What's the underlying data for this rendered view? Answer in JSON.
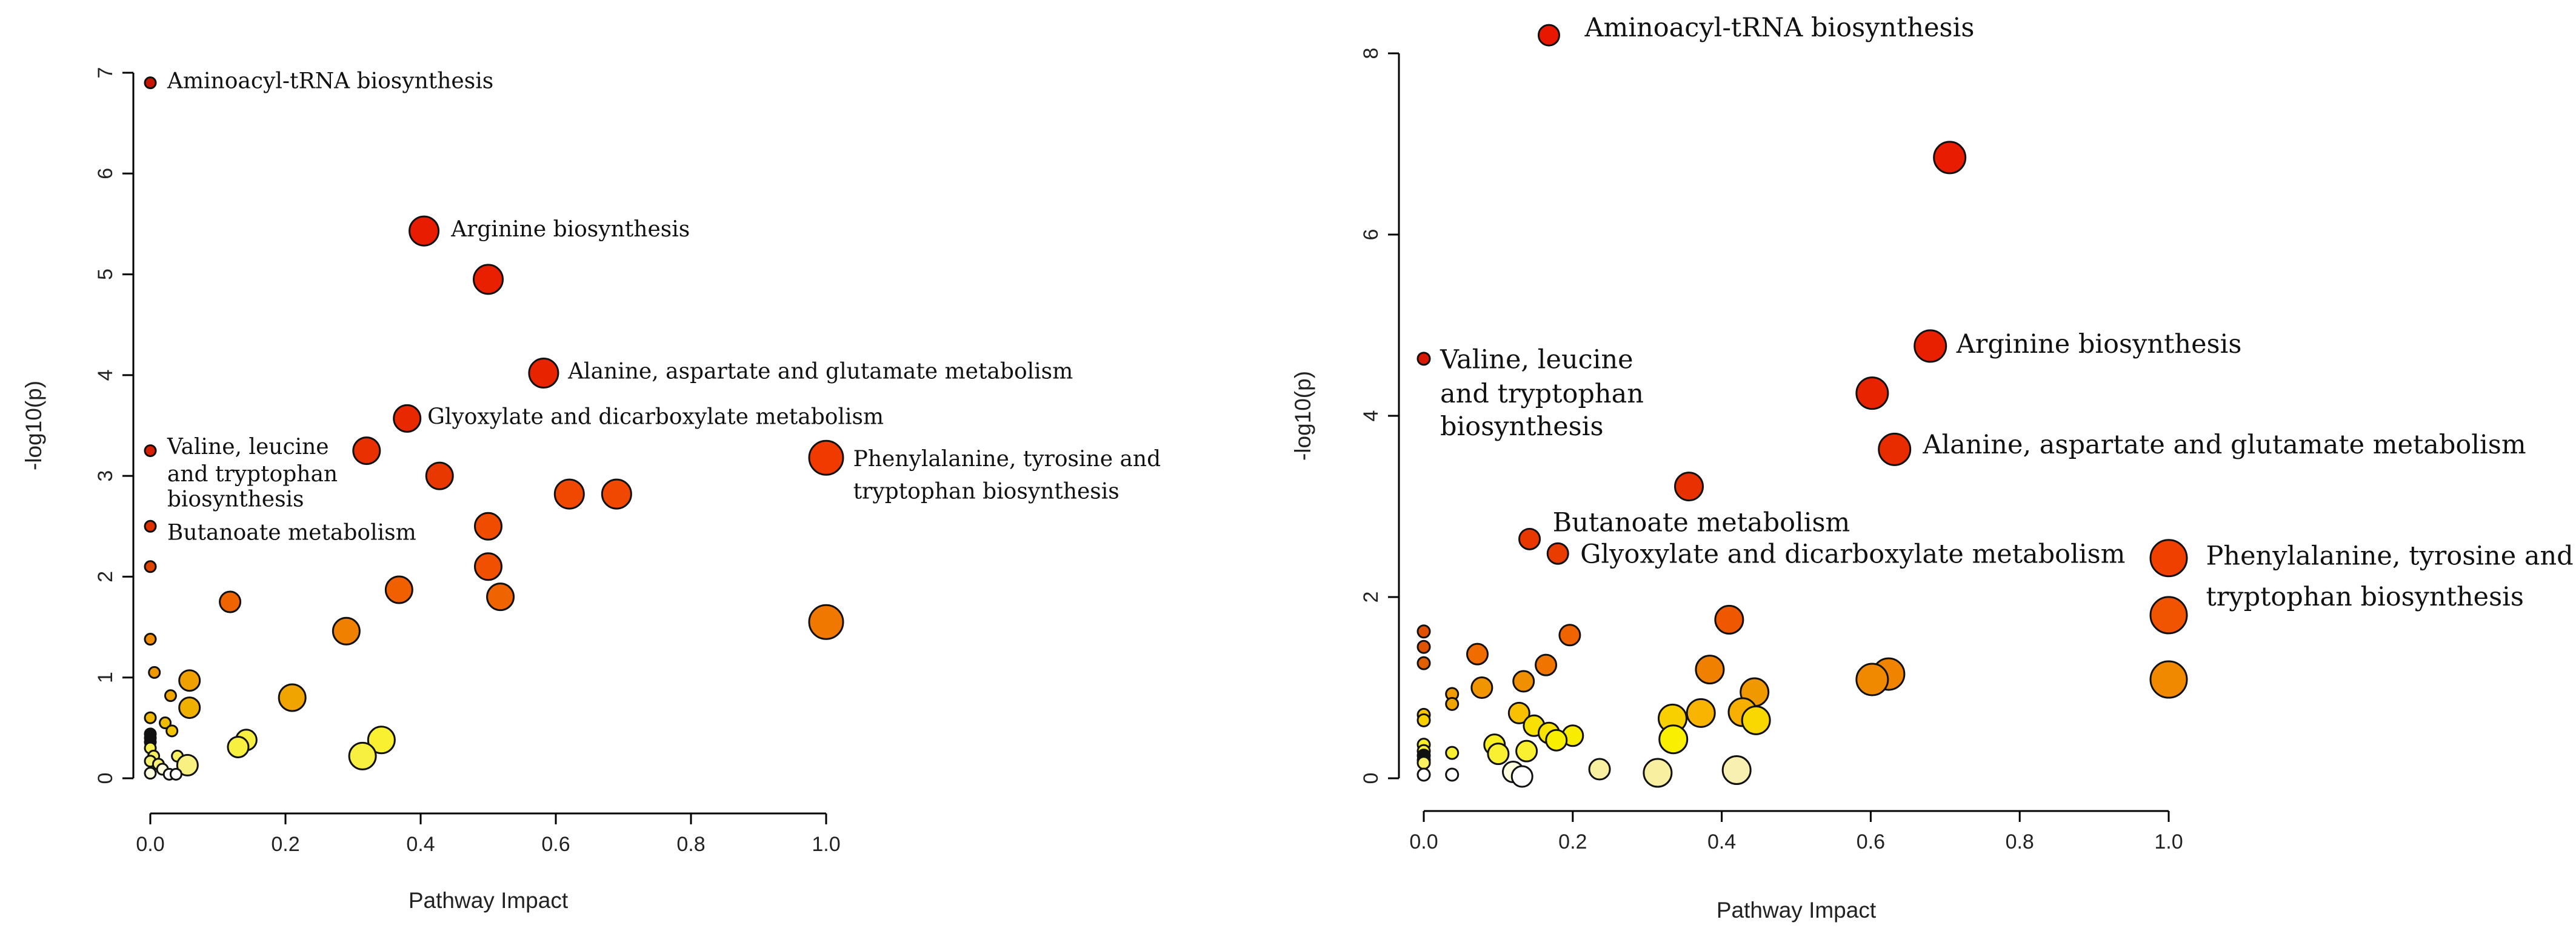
{
  "chart_data": [
    {
      "type": "scatter",
      "title": "",
      "xlabel": "Pathway Impact",
      "ylabel": "-log10(p)",
      "xlim": [
        0.0,
        1.0
      ],
      "ylim": [
        0,
        7
      ],
      "xticks": [
        "0.0",
        "0.2",
        "0.4",
        "0.6",
        "0.8",
        "1.0"
      ],
      "yticks": [
        "0",
        "1",
        "2",
        "3",
        "4",
        "5",
        "6",
        "7"
      ],
      "grid": false,
      "points": [
        {
          "x": 0.0,
          "y": 6.9,
          "size": 1,
          "color": "#c81400"
        },
        {
          "x": 0.405,
          "y": 5.43,
          "size": 4,
          "color": "#e81c00"
        },
        {
          "x": 0.5,
          "y": 4.95,
          "size": 4,
          "color": "#e82000"
        },
        {
          "x": 0.582,
          "y": 4.02,
          "size": 4,
          "color": "#e82400"
        },
        {
          "x": 0.38,
          "y": 3.57,
          "size": 3,
          "color": "#e82800"
        },
        {
          "x": 0.0,
          "y": 3.25,
          "size": 1,
          "color": "#d82000"
        },
        {
          "x": 0.32,
          "y": 3.25,
          "size": 3,
          "color": "#e83000"
        },
        {
          "x": 0.428,
          "y": 3.0,
          "size": 3,
          "color": "#e83800"
        },
        {
          "x": 1.0,
          "y": 3.18,
          "size": 5,
          "color": "#f03a00"
        },
        {
          "x": 0.62,
          "y": 2.82,
          "size": 4,
          "color": "#f04800"
        },
        {
          "x": 0.69,
          "y": 2.82,
          "size": 4,
          "color": "#f04800"
        },
        {
          "x": 0.0,
          "y": 2.5,
          "size": 1,
          "color": "#e03000"
        },
        {
          "x": 0.5,
          "y": 2.5,
          "size": 3,
          "color": "#f04c00"
        },
        {
          "x": 0.0,
          "y": 2.1,
          "size": 1,
          "color": "#e04400"
        },
        {
          "x": 0.5,
          "y": 2.1,
          "size": 3,
          "color": "#f05000"
        },
        {
          "x": 0.368,
          "y": 1.87,
          "size": 3,
          "color": "#f06000"
        },
        {
          "x": 0.518,
          "y": 1.8,
          "size": 3,
          "color": "#f06400"
        },
        {
          "x": 0.118,
          "y": 1.75,
          "size": 2,
          "color": "#f06400"
        },
        {
          "x": 1.0,
          "y": 1.55,
          "size": 5,
          "color": "#f07800"
        },
        {
          "x": 0.29,
          "y": 1.46,
          "size": 3,
          "color": "#f08000"
        },
        {
          "x": 0.0,
          "y": 1.38,
          "size": 1,
          "color": "#f08c00"
        },
        {
          "x": 0.006,
          "y": 1.05,
          "size": 1,
          "color": "#f09800"
        },
        {
          "x": 0.058,
          "y": 0.97,
          "size": 2,
          "color": "#f0a000"
        },
        {
          "x": 0.03,
          "y": 0.82,
          "size": 1,
          "color": "#f0a400"
        },
        {
          "x": 0.21,
          "y": 0.8,
          "size": 3,
          "color": "#f0a400"
        },
        {
          "x": 0.058,
          "y": 0.7,
          "size": 2,
          "color": "#f0b000"
        },
        {
          "x": 0.0,
          "y": 0.6,
          "size": 1,
          "color": "#f0b800"
        },
        {
          "x": 0.022,
          "y": 0.55,
          "size": 1,
          "color": "#f0bc00"
        },
        {
          "x": 0.032,
          "y": 0.47,
          "size": 1,
          "color": "#f0c400"
        },
        {
          "x": 0.0,
          "y": 0.44,
          "size": 1,
          "color": "#101010"
        },
        {
          "x": 0.0,
          "y": 0.4,
          "size": 1,
          "color": "#101010"
        },
        {
          "x": 0.0,
          "y": 0.36,
          "size": 1,
          "color": "#101010"
        },
        {
          "x": 0.142,
          "y": 0.38,
          "size": 2,
          "color": "#f8f040"
        },
        {
          "x": 0.342,
          "y": 0.38,
          "size": 3,
          "color": "#f8f030"
        },
        {
          "x": 0.13,
          "y": 0.31,
          "size": 2,
          "color": "#f8f040"
        },
        {
          "x": 0.0,
          "y": 0.3,
          "size": 1,
          "color": "#f8f050"
        },
        {
          "x": 0.005,
          "y": 0.22,
          "size": 1,
          "color": "#f8f060"
        },
        {
          "x": 0.04,
          "y": 0.22,
          "size": 1,
          "color": "#f8f060"
        },
        {
          "x": 0.314,
          "y": 0.22,
          "size": 3,
          "color": "#f8f040"
        },
        {
          "x": 0.0,
          "y": 0.17,
          "size": 1,
          "color": "#f8f070"
        },
        {
          "x": 0.012,
          "y": 0.14,
          "size": 1,
          "color": "#f8f070"
        },
        {
          "x": 0.055,
          "y": 0.13,
          "size": 2,
          "color": "#f8f080"
        },
        {
          "x": 0.018,
          "y": 0.09,
          "size": 1,
          "color": "#ffffe0"
        },
        {
          "x": 0.0,
          "y": 0.05,
          "size": 1,
          "color": "#ffffe0"
        },
        {
          "x": 0.028,
          "y": 0.04,
          "size": 1,
          "color": "#ffffff"
        },
        {
          "x": 0.038,
          "y": 0.04,
          "size": 1,
          "color": "#ffffff"
        }
      ],
      "annotations": [
        {
          "text": "Aminoacyl-tRNA biosynthesis",
          "x": 0.025,
          "y": 6.9
        },
        {
          "text": "Arginine biosynthesis",
          "x": 0.445,
          "y": 5.43
        },
        {
          "text": "Alanine, aspartate and glutamate metabolism",
          "x": 0.618,
          "y": 4.02
        },
        {
          "text": "Glyoxylate and dicarboxylate metabolism",
          "x": 0.41,
          "y": 3.57
        },
        {
          "text": "Valine, leucine",
          "x": 0.025,
          "y": 3.27
        },
        {
          "text": "and tryptophan",
          "x": 0.025,
          "y": 3.0
        },
        {
          "text": "biosynthesis",
          "x": 0.025,
          "y": 2.75
        },
        {
          "text": "Butanoate metabolism",
          "x": 0.025,
          "y": 2.42
        },
        {
          "text": "Phenylalanine, tyrosine and",
          "x": 1.04,
          "y": 3.15
        },
        {
          "text": "tryptophan biosynthesis",
          "x": 1.04,
          "y": 2.83
        }
      ]
    },
    {
      "type": "scatter",
      "title": "",
      "xlabel": "Pathway Impact",
      "ylabel": "-log10(p)",
      "xlim": [
        0.0,
        1.0
      ],
      "ylim": [
        0,
        8
      ],
      "xticks": [
        "0.0",
        "0.2",
        "0.4",
        "0.6",
        "0.8",
        "1.0"
      ],
      "yticks": [
        "0",
        "2",
        "4",
        "6",
        "8"
      ],
      "grid": false,
      "points": [
        {
          "x": 0.168,
          "y": 8.2,
          "size": 2,
          "color": "#e81800"
        },
        {
          "x": 0.706,
          "y": 6.85,
          "size": 4,
          "color": "#e81c00"
        },
        {
          "x": 0.68,
          "y": 4.77,
          "size": 4,
          "color": "#e82000"
        },
        {
          "x": 0.0,
          "y": 4.63,
          "size": 1,
          "color": "#d81800"
        },
        {
          "x": 0.602,
          "y": 4.25,
          "size": 4,
          "color": "#e82400"
        },
        {
          "x": 0.632,
          "y": 3.63,
          "size": 4,
          "color": "#e82c00"
        },
        {
          "x": 0.356,
          "y": 3.22,
          "size": 3,
          "color": "#e83000"
        },
        {
          "x": 0.142,
          "y": 2.64,
          "size": 2,
          "color": "#e83800"
        },
        {
          "x": 0.18,
          "y": 2.48,
          "size": 2,
          "color": "#e83c00"
        },
        {
          "x": 1.0,
          "y": 2.43,
          "size": 5,
          "color": "#f04000"
        },
        {
          "x": 1.0,
          "y": 1.8,
          "size": 5,
          "color": "#f05400"
        },
        {
          "x": 0.41,
          "y": 1.75,
          "size": 3,
          "color": "#f05800"
        },
        {
          "x": 0.0,
          "y": 1.62,
          "size": 1,
          "color": "#e05000"
        },
        {
          "x": 0.196,
          "y": 1.58,
          "size": 2,
          "color": "#f06400"
        },
        {
          "x": 0.0,
          "y": 1.45,
          "size": 1,
          "color": "#e05400"
        },
        {
          "x": 0.072,
          "y": 1.37,
          "size": 2,
          "color": "#f06c00"
        },
        {
          "x": 0.0,
          "y": 1.27,
          "size": 1,
          "color": "#e06000"
        },
        {
          "x": 0.164,
          "y": 1.25,
          "size": 2,
          "color": "#f07400"
        },
        {
          "x": 0.384,
          "y": 1.2,
          "size": 3,
          "color": "#f08000"
        },
        {
          "x": 0.624,
          "y": 1.15,
          "size": 4,
          "color": "#f08400"
        },
        {
          "x": 0.602,
          "y": 1.09,
          "size": 4,
          "color": "#f08800"
        },
        {
          "x": 1.0,
          "y": 1.09,
          "size": 5,
          "color": "#f08800"
        },
        {
          "x": 0.134,
          "y": 1.07,
          "size": 2,
          "color": "#f09000"
        },
        {
          "x": 0.078,
          "y": 1.0,
          "size": 2,
          "color": "#f09400"
        },
        {
          "x": 0.444,
          "y": 0.95,
          "size": 3,
          "color": "#f09800"
        },
        {
          "x": 0.038,
          "y": 0.93,
          "size": 1,
          "color": "#f09c00"
        },
        {
          "x": 0.038,
          "y": 0.82,
          "size": 1,
          "color": "#f0a400"
        },
        {
          "x": 0.428,
          "y": 0.73,
          "size": 3,
          "color": "#f8b000"
        },
        {
          "x": 0.372,
          "y": 0.72,
          "size": 3,
          "color": "#f8b400"
        },
        {
          "x": 0.128,
          "y": 0.72,
          "size": 2,
          "color": "#f8c000"
        },
        {
          "x": 0.0,
          "y": 0.7,
          "size": 1,
          "color": "#f8c400"
        },
        {
          "x": 0.334,
          "y": 0.66,
          "size": 3,
          "color": "#f8d000"
        },
        {
          "x": 0.0,
          "y": 0.64,
          "size": 1,
          "color": "#f8d000"
        },
        {
          "x": 0.446,
          "y": 0.64,
          "size": 3,
          "color": "#f8d800"
        },
        {
          "x": 0.148,
          "y": 0.58,
          "size": 2,
          "color": "#f8e000"
        },
        {
          "x": 0.168,
          "y": 0.5,
          "size": 2,
          "color": "#f8e400"
        },
        {
          "x": 0.2,
          "y": 0.47,
          "size": 2,
          "color": "#f8ec00"
        },
        {
          "x": 0.335,
          "y": 0.43,
          "size": 3,
          "color": "#f8f000"
        },
        {
          "x": 0.178,
          "y": 0.42,
          "size": 2,
          "color": "#f8f000"
        },
        {
          "x": 0.095,
          "y": 0.37,
          "size": 2,
          "color": "#f8f020"
        },
        {
          "x": 0.0,
          "y": 0.37,
          "size": 1,
          "color": "#f8f020"
        },
        {
          "x": 0.0,
          "y": 0.3,
          "size": 1,
          "color": "#f8f030"
        },
        {
          "x": 0.138,
          "y": 0.3,
          "size": 2,
          "color": "#f8f030"
        },
        {
          "x": 0.038,
          "y": 0.28,
          "size": 1,
          "color": "#f8f030"
        },
        {
          "x": 0.1,
          "y": 0.27,
          "size": 2,
          "color": "#f8f030"
        },
        {
          "x": 0.0,
          "y": 0.25,
          "size": 1,
          "color": "#101010"
        },
        {
          "x": 0.0,
          "y": 0.2,
          "size": 1,
          "color": "#101010"
        },
        {
          "x": 0.0,
          "y": 0.17,
          "size": 1,
          "color": "#f8f060"
        },
        {
          "x": 0.236,
          "y": 0.1,
          "size": 2,
          "color": "#f8f0a0"
        },
        {
          "x": 0.12,
          "y": 0.07,
          "size": 2,
          "color": "#ffffe0"
        },
        {
          "x": 0.314,
          "y": 0.06,
          "size": 3,
          "color": "#f8f0a0"
        },
        {
          "x": 0.42,
          "y": 0.09,
          "size": 3,
          "color": "#f8f0b0"
        },
        {
          "x": 0.038,
          "y": 0.04,
          "size": 1,
          "color": "#ffffff"
        },
        {
          "x": 0.0,
          "y": 0.04,
          "size": 1,
          "color": "#ffffff"
        },
        {
          "x": 0.132,
          "y": 0.02,
          "size": 2,
          "color": "#ffffff"
        }
      ],
      "annotations": [
        {
          "text": "Aminoacyl-tRNA biosynthesis",
          "x": 0.216,
          "y": 8.26
        },
        {
          "text": "Arginine biosynthesis",
          "x": 0.715,
          "y": 4.77
        },
        {
          "text": "Valine, leucine",
          "x": 0.022,
          "y": 4.6
        },
        {
          "text": "and tryptophan",
          "x": 0.022,
          "y": 4.22
        },
        {
          "text": "biosynthesis",
          "x": 0.022,
          "y": 3.86
        },
        {
          "text": "Alanine, aspartate and glutamate metabolism",
          "x": 0.67,
          "y": 3.66
        },
        {
          "text": "Butanoate metabolism",
          "x": 0.173,
          "y": 2.8
        },
        {
          "text": "Glyoxylate and dicarboxylate metabolism",
          "x": 0.21,
          "y": 2.45
        },
        {
          "text": "Phenylalanine, tyrosine and",
          "x": 1.05,
          "y": 2.43
        },
        {
          "text": "tryptophan biosynthesis",
          "x": 1.05,
          "y": 1.98
        }
      ]
    }
  ]
}
